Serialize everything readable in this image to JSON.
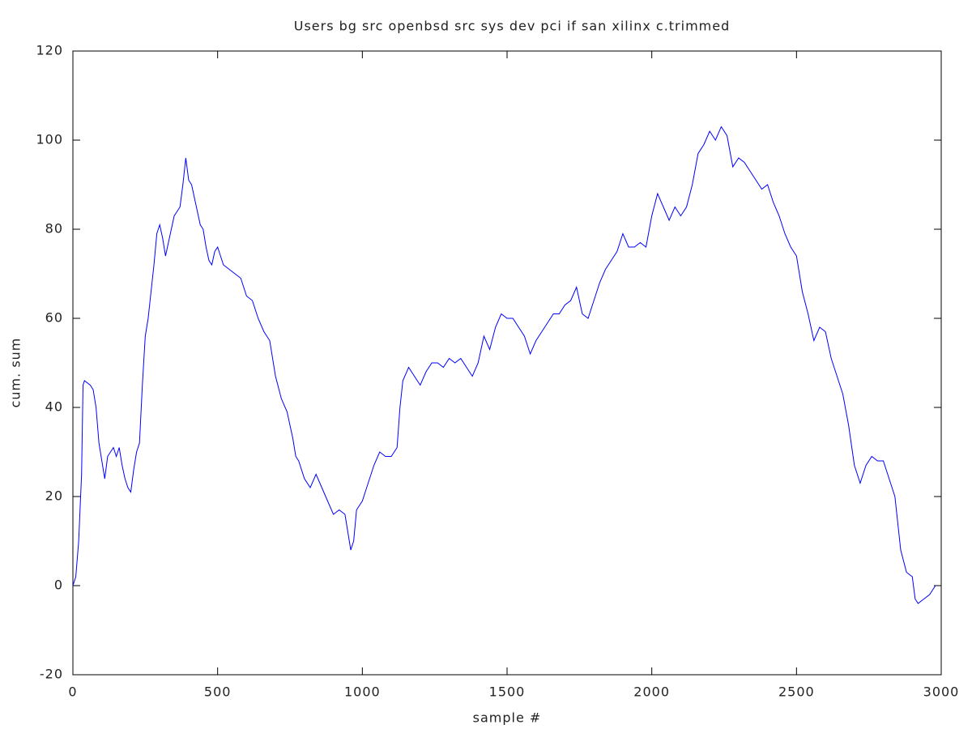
{
  "chart_data": {
    "type": "line",
    "title": "Users bg src openbsd src sys dev pci if san xilinx c.trimmed",
    "xlabel": "sample #",
    "ylabel": "cum. sum",
    "xlim": [
      0,
      3000
    ],
    "xticks": [
      0,
      500,
      1000,
      1500,
      2000,
      2500,
      3000
    ],
    "ylim": [
      -20,
      120
    ],
    "yticks": [
      -20,
      0,
      20,
      40,
      60,
      80,
      100,
      120
    ],
    "grid": false,
    "series": [
      {
        "color": "#0000ff",
        "x": [
          0,
          10,
          20,
          30,
          35,
          40,
          60,
          70,
          80,
          90,
          100,
          110,
          120,
          130,
          140,
          150,
          160,
          170,
          180,
          190,
          200,
          210,
          220,
          230,
          240,
          250,
          260,
          270,
          280,
          290,
          300,
          310,
          320,
          330,
          340,
          350,
          360,
          370,
          380,
          390,
          400,
          410,
          420,
          430,
          440,
          450,
          460,
          470,
          480,
          490,
          500,
          520,
          540,
          560,
          580,
          600,
          620,
          640,
          660,
          680,
          700,
          720,
          740,
          760,
          770,
          780,
          800,
          820,
          840,
          860,
          880,
          900,
          920,
          940,
          960,
          970,
          980,
          1000,
          1020,
          1040,
          1060,
          1080,
          1100,
          1120,
          1130,
          1140,
          1160,
          1180,
          1200,
          1220,
          1240,
          1260,
          1280,
          1300,
          1320,
          1340,
          1360,
          1380,
          1400,
          1420,
          1440,
          1460,
          1480,
          1500,
          1520,
          1540,
          1560,
          1580,
          1600,
          1620,
          1640,
          1660,
          1680,
          1700,
          1720,
          1740,
          1760,
          1780,
          1800,
          1820,
          1840,
          1860,
          1880,
          1900,
          1920,
          1940,
          1960,
          1980,
          2000,
          2020,
          2040,
          2060,
          2080,
          2100,
          2120,
          2140,
          2160,
          2180,
          2200,
          2220,
          2240,
          2260,
          2280,
          2300,
          2320,
          2340,
          2360,
          2380,
          2400,
          2420,
          2440,
          2460,
          2480,
          2500,
          2520,
          2540,
          2560,
          2580,
          2600,
          2620,
          2640,
          2660,
          2680,
          2700,
          2720,
          2740,
          2760,
          2780,
          2800,
          2820,
          2840,
          2860,
          2880,
          2900,
          2910,
          2920,
          2940,
          2960,
          2980
        ],
        "values": [
          0,
          2,
          10,
          25,
          45,
          46,
          45,
          44,
          40,
          32,
          28,
          24,
          29,
          30,
          31,
          29,
          31,
          27,
          24,
          22,
          21,
          26,
          30,
          32,
          45,
          56,
          60,
          66,
          72,
          79,
          81,
          78,
          74,
          77,
          80,
          83,
          84,
          85,
          90,
          96,
          91,
          90,
          87,
          84,
          81,
          80,
          76,
          73,
          72,
          75,
          76,
          72,
          71,
          70,
          69,
          65,
          64,
          60,
          57,
          55,
          47,
          42,
          39,
          33,
          29,
          28,
          24,
          22,
          25,
          22,
          19,
          16,
          17,
          16,
          8,
          10,
          17,
          19,
          23,
          27,
          30,
          29,
          29,
          31,
          40,
          46,
          49,
          47,
          45,
          48,
          50,
          50,
          49,
          51,
          50,
          51,
          49,
          47,
          50,
          56,
          53,
          58,
          61,
          60,
          60,
          58,
          56,
          52,
          55,
          57,
          59,
          61,
          61,
          63,
          64,
          67,
          61,
          60,
          64,
          68,
          71,
          73,
          75,
          79,
          76,
          76,
          77,
          76,
          83,
          88,
          85,
          82,
          85,
          83,
          85,
          90,
          97,
          99,
          102,
          100,
          103,
          101,
          94,
          96,
          95,
          93,
          91,
          89,
          90,
          86,
          83,
          79,
          76,
          74,
          66,
          61,
          55,
          58,
          57,
          51,
          47,
          43,
          36,
          27,
          23,
          27,
          29,
          28,
          28,
          24,
          20,
          8,
          3,
          2,
          -3,
          -4,
          -3,
          -2,
          0
        ]
      }
    ]
  }
}
